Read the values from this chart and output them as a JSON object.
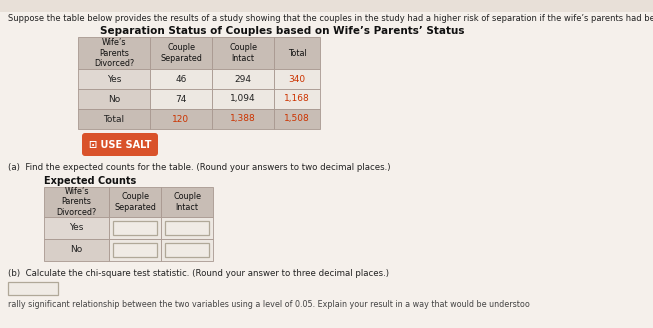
{
  "title_text": "Suppose the table below provides the results of a study showing that the couples in the study had a higher risk of separation if the wife’s parents had been divorced.",
  "table_title": "Separation Status of Couples based on Wife’s Parents’ Status",
  "headers": [
    "Wife’s\nParents\nDivorced?",
    "Couple\nSeparated",
    "Couple\nIntact",
    "Total"
  ],
  "rows": [
    [
      "Yes",
      "46",
      "294",
      "340"
    ],
    [
      "No",
      "74",
      "1,094",
      "1,168"
    ],
    [
      "Total",
      "120",
      "1,388",
      "1,508"
    ]
  ],
  "use_salt_label": "⊡ USE SALT",
  "part_a_text": "(a)  Find the expected counts for the table. (Round your answers to two decimal places.)",
  "expected_title": "Expected Counts",
  "expected_headers": [
    "Wife’s\nParents\nDivorced?",
    "Couple\nSeparated",
    "Couple\nIntact"
  ],
  "expected_rows": [
    [
      "Yes",
      "",
      ""
    ],
    [
      "No",
      "",
      ""
    ]
  ],
  "part_b_text": "(b)  Calculate the chi-square test statistic. (Round your answer to three decimal places.)",
  "bottom_text": "rally significant relationship between the two variables using a level of 0.05. Explain your result in a way that would be understoo",
  "page_bg": "#f5f0eb",
  "top_bar_bg": "#e8e0d8",
  "header_bg": "#c8bdb5",
  "row_yes_bg": "#e0d8d2",
  "row_no_bg": "#d8cfc8",
  "row_total_bg": "#c8bdb5",
  "data_cell_bg": "#ede8e2",
  "total_color": "#cc3300",
  "separator_color": "#a89890",
  "salt_bg": "#d9522a",
  "salt_text": "#ffffff",
  "input_box_bg": "#f0ebe5",
  "input_box_border": "#b0a898",
  "text_color": "#222222",
  "bold_text_color": "#111111"
}
